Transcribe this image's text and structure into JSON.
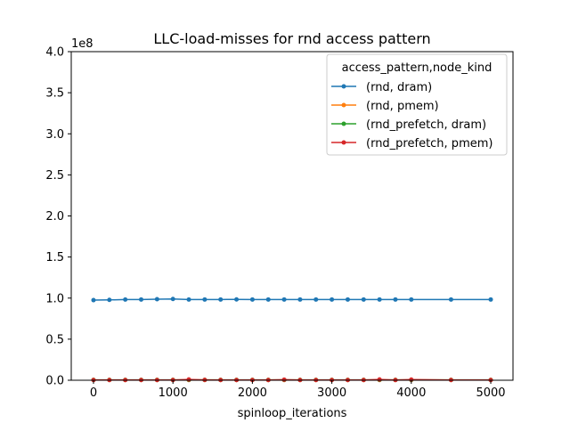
{
  "chart_data": {
    "type": "line",
    "title": "LLC-load-misses for rnd access pattern",
    "xlabel": "spinloop_iterations",
    "ylabel": "",
    "y_offset_label": "1e8",
    "xlim": [
      -280,
      5280
    ],
    "ylim": [
      0,
      400000000
    ],
    "x_ticks": [
      0,
      1000,
      2000,
      3000,
      4000,
      5000
    ],
    "x_tick_labels": [
      "0",
      "1000",
      "2000",
      "3000",
      "4000",
      "5000"
    ],
    "y_ticks": [
      0,
      50000000,
      100000000,
      150000000,
      200000000,
      250000000,
      300000000,
      350000000,
      400000000
    ],
    "y_tick_labels": [
      "0.0",
      "0.5",
      "1.0",
      "1.5",
      "2.0",
      "2.5",
      "3.0",
      "3.5",
      "4.0"
    ],
    "grid": false,
    "legend": {
      "title": "access_pattern,node_kind",
      "placement": "top-right"
    },
    "x": [
      0,
      200,
      400,
      600,
      800,
      1000,
      1200,
      1400,
      1600,
      1800,
      2000,
      2200,
      2400,
      2600,
      2800,
      3000,
      3200,
      3400,
      3600,
      3800,
      4000,
      4500,
      5000
    ],
    "series": [
      {
        "name": "(rnd, dram)",
        "color": "#1f77b4",
        "values": [
          97500000,
          97800000,
          98200000,
          98300000,
          98600000,
          98900000,
          98200000,
          98300000,
          98300000,
          98400000,
          98300000,
          98300000,
          98300000,
          98300000,
          98300000,
          98300000,
          98300000,
          98300000,
          98300000,
          98300000,
          98300000,
          98300000,
          98300000
        ]
      },
      {
        "name": "(rnd, pmem)",
        "color": "#ff7f0e",
        "values": [
          300000,
          300000,
          300000,
          300000,
          300000,
          300000,
          300000,
          300000,
          300000,
          300000,
          300000,
          300000,
          300000,
          300000,
          300000,
          300000,
          300000,
          300000,
          300000,
          300000,
          300000,
          300000,
          300000
        ]
      },
      {
        "name": "(rnd_prefetch, dram)",
        "color": "#2ca02c",
        "values": [
          400000,
          400000,
          400000,
          400000,
          400000,
          400000,
          400000,
          400000,
          400000,
          400000,
          400000,
          400000,
          400000,
          400000,
          400000,
          400000,
          400000,
          400000,
          400000,
          400000,
          400000,
          400000,
          400000
        ]
      },
      {
        "name": "(rnd_prefetch, pmem)",
        "color": "#d62728",
        "values": [
          300000,
          300000,
          300000,
          300000,
          300000,
          300000,
          900000,
          400000,
          300000,
          300000,
          300000,
          300000,
          700000,
          300000,
          300000,
          300000,
          300000,
          300000,
          900000,
          300000,
          800000,
          300000,
          300000
        ]
      }
    ]
  }
}
